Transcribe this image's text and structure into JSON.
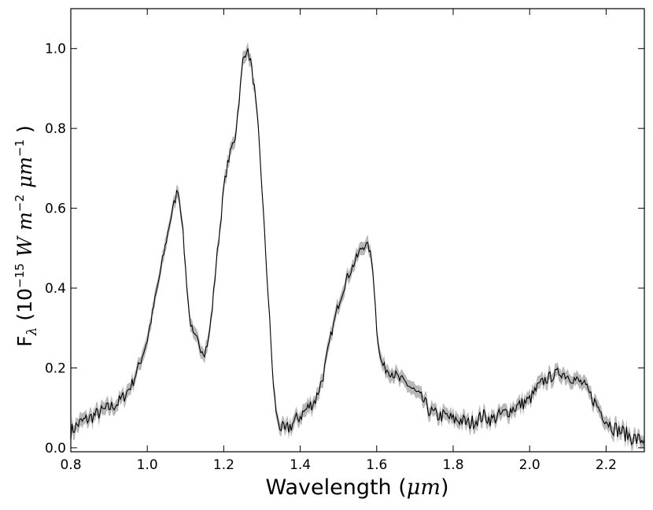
{
  "chart_data": {
    "type": "line",
    "title": "",
    "xlabel": {
      "prefix": "Wavelength (",
      "unit": "μm",
      "suffix": ")"
    },
    "ylabel": {
      "symbol": "F",
      "sub": "λ",
      "prefix": " (10",
      "exp": "−15",
      "unit_w": " W m",
      "exp2": "−2",
      "unit_um": "  μm",
      "exp3": "−1",
      "suffix": " )"
    },
    "xlim": [
      0.8,
      2.3
    ],
    "ylim": [
      -0.01,
      1.1
    ],
    "x_ticks": [
      0.8,
      1.0,
      1.2,
      1.4,
      1.6,
      1.8,
      2.0,
      2.2
    ],
    "x_tick_labels": [
      "0.8",
      "1.0",
      "1.2",
      "1.4",
      "1.6",
      "1.8",
      "2.0",
      "2.2"
    ],
    "y_ticks": [
      0.0,
      0.2,
      0.4,
      0.6,
      0.8,
      1.0
    ],
    "y_tick_labels": [
      "0.0",
      "0.2",
      "0.4",
      "0.6",
      "0.8",
      "1.0"
    ],
    "grid": false,
    "legend": "none",
    "line_color": "#000000",
    "band_color": "#b8b8b8",
    "series": [
      {
        "x": [
          0.8,
          0.82,
          0.84,
          0.86,
          0.88,
          0.9,
          0.92,
          0.94,
          0.96,
          0.98,
          1.0,
          1.02,
          1.04,
          1.06,
          1.07,
          1.08,
          1.09,
          1.1,
          1.11,
          1.12,
          1.13,
          1.14,
          1.15,
          1.16,
          1.17,
          1.18,
          1.19,
          1.2,
          1.21,
          1.22,
          1.23,
          1.24,
          1.25,
          1.26,
          1.27,
          1.28,
          1.29,
          1.3,
          1.31,
          1.32,
          1.33,
          1.34,
          1.35,
          1.36,
          1.38,
          1.4,
          1.42,
          1.44,
          1.46,
          1.48,
          1.5,
          1.52,
          1.54,
          1.56,
          1.57,
          1.58,
          1.59,
          1.6,
          1.61,
          1.62,
          1.64,
          1.66,
          1.68,
          1.7,
          1.72,
          1.74,
          1.76,
          1.78,
          1.8,
          1.82,
          1.84,
          1.86,
          1.88,
          1.9,
          1.92,
          1.94,
          1.96,
          1.98,
          2.0,
          2.02,
          2.04,
          2.06,
          2.08,
          2.1,
          2.12,
          2.14,
          2.16,
          2.18,
          2.2,
          2.22,
          2.24,
          2.26,
          2.28,
          2.3
        ],
        "y": [
          0.04,
          0.06,
          0.07,
          0.08,
          0.09,
          0.1,
          0.11,
          0.13,
          0.16,
          0.21,
          0.27,
          0.37,
          0.47,
          0.57,
          0.61,
          0.65,
          0.58,
          0.45,
          0.33,
          0.28,
          0.27,
          0.25,
          0.24,
          0.27,
          0.35,
          0.46,
          0.55,
          0.65,
          0.71,
          0.75,
          0.78,
          0.87,
          0.97,
          1.0,
          0.97,
          0.9,
          0.8,
          0.65,
          0.48,
          0.32,
          0.15,
          0.07,
          0.05,
          0.04,
          0.06,
          0.08,
          0.1,
          0.12,
          0.18,
          0.28,
          0.36,
          0.42,
          0.46,
          0.5,
          0.51,
          0.5,
          0.45,
          0.3,
          0.22,
          0.2,
          0.19,
          0.17,
          0.16,
          0.14,
          0.12,
          0.09,
          0.08,
          0.08,
          0.07,
          0.07,
          0.06,
          0.07,
          0.08,
          0.07,
          0.08,
          0.09,
          0.1,
          0.11,
          0.12,
          0.15,
          0.17,
          0.18,
          0.19,
          0.18,
          0.17,
          0.16,
          0.13,
          0.1,
          0.07,
          0.05,
          0.04,
          0.03,
          0.02,
          0.02
        ]
      }
    ]
  }
}
